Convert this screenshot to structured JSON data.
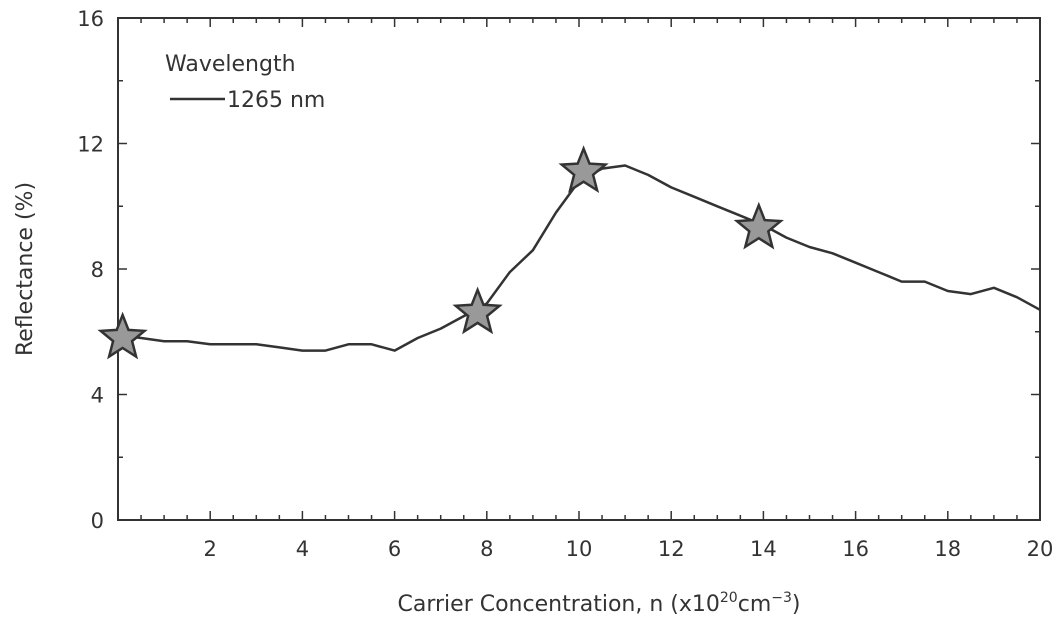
{
  "chart_data": {
    "type": "line",
    "title": "",
    "xlabel": {
      "main": "Carrier Concentration, n (x10",
      "sup1": "20",
      "mid": "cm",
      "sup2": "−3",
      "end": ")"
    },
    "ylabel": "Reflectance (%)",
    "xlim": [
      0,
      20
    ],
    "ylim": [
      0,
      16
    ],
    "xticks": [
      2,
      4,
      6,
      8,
      10,
      12,
      14,
      16,
      18,
      20
    ],
    "yticks": [
      0,
      4,
      8,
      12,
      16
    ],
    "grid": false,
    "legend": {
      "title": "Wavelength",
      "placement": "top-left"
    },
    "series": [
      {
        "name": "1265 nm",
        "x": [
          0,
          0.5,
          1,
          1.5,
          2,
          2.5,
          3,
          3.5,
          4,
          4.5,
          5,
          5.5,
          6,
          6.5,
          7,
          7.5,
          8,
          8.5,
          9,
          9.5,
          10,
          10.5,
          11,
          11.5,
          12,
          12.5,
          13,
          13.5,
          14,
          14.5,
          15,
          15.5,
          16,
          16.5,
          17,
          17.5,
          18,
          18.5,
          19,
          19.5,
          20
        ],
        "y": [
          5.9,
          5.8,
          5.7,
          5.7,
          5.6,
          5.6,
          5.6,
          5.5,
          5.4,
          5.4,
          5.6,
          5.6,
          5.4,
          5.8,
          6.1,
          6.5,
          6.9,
          7.9,
          8.6,
          9.8,
          10.8,
          11.2,
          11.3,
          11.0,
          10.6,
          10.3,
          10.0,
          9.7,
          9.4,
          9.0,
          8.7,
          8.5,
          8.2,
          7.9,
          7.6,
          7.6,
          7.3,
          7.2,
          7.4,
          7.1,
          6.7
        ],
        "markers": [
          {
            "x": 0.1,
            "y": 5.8
          },
          {
            "x": 7.8,
            "y": 6.6
          },
          {
            "x": 10.1,
            "y": 11.1
          },
          {
            "x": 13.9,
            "y": 9.3
          }
        ]
      }
    ]
  },
  "colors": {
    "line": "#333333",
    "axis": "#333333",
    "marker_fill": "#999999"
  }
}
